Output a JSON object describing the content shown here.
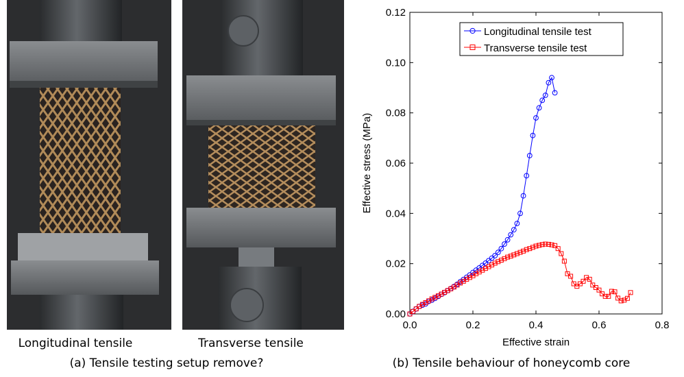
{
  "photos": {
    "left_label": "Longitudinal tensile",
    "right_label": "Transverse tensile",
    "caption": "(a) Tensile testing setup remove?"
  },
  "chart_caption": "(b) Tensile behaviour of honeycomb core",
  "colors": {
    "longitudinal": "#0000ff",
    "transverse": "#ff0000"
  },
  "chart_data": {
    "type": "line",
    "title": "",
    "xlabel": "Effective strain",
    "ylabel": "Effective stress (MPa)",
    "xlim": [
      0,
      0.8
    ],
    "ylim": [
      0,
      0.12
    ],
    "xticks": [
      0,
      0.2,
      0.4,
      0.6,
      0.8
    ],
    "xtick_labels": [
      "0.0",
      "0.2",
      "0.4",
      "0.6",
      "0.8"
    ],
    "yticks": [
      0,
      0.02,
      0.04,
      0.06,
      0.08,
      0.1,
      0.12
    ],
    "ytick_labels": [
      "0.00",
      "0.02",
      "0.04",
      "0.06",
      "0.08",
      "0.10",
      "0.12"
    ],
    "grid": false,
    "legend": "top-center",
    "series": [
      {
        "name": "Longitudinal tensile test",
        "color": "#0000ff",
        "marker": "circle",
        "x": [
          0.0,
          0.01,
          0.02,
          0.03,
          0.04,
          0.05,
          0.06,
          0.07,
          0.08,
          0.09,
          0.1,
          0.11,
          0.12,
          0.13,
          0.14,
          0.15,
          0.16,
          0.17,
          0.18,
          0.19,
          0.2,
          0.21,
          0.22,
          0.23,
          0.24,
          0.25,
          0.26,
          0.27,
          0.28,
          0.29,
          0.3,
          0.31,
          0.32,
          0.33,
          0.34,
          0.35,
          0.36,
          0.37,
          0.38,
          0.39,
          0.4,
          0.41,
          0.42,
          0.43,
          0.44,
          0.45,
          0.46
        ],
        "y": [
          0.0,
          0.001,
          0.002,
          0.003,
          0.0035,
          0.004,
          0.005,
          0.0055,
          0.0062,
          0.007,
          0.0078,
          0.0085,
          0.0093,
          0.0101,
          0.0109,
          0.0118,
          0.0128,
          0.0137,
          0.0146,
          0.0155,
          0.0165,
          0.0174,
          0.0183,
          0.0193,
          0.0202,
          0.0212,
          0.0222,
          0.0232,
          0.0245,
          0.026,
          0.0278,
          0.0295,
          0.0315,
          0.0335,
          0.036,
          0.04,
          0.047,
          0.055,
          0.063,
          0.071,
          0.078,
          0.082,
          0.085,
          0.087,
          0.092,
          0.094,
          0.088
        ]
      },
      {
        "name": "Transverse tensile test",
        "color": "#ff0000",
        "marker": "square",
        "x": [
          0.0,
          0.01,
          0.02,
          0.03,
          0.04,
          0.05,
          0.06,
          0.07,
          0.08,
          0.09,
          0.1,
          0.11,
          0.12,
          0.13,
          0.14,
          0.15,
          0.16,
          0.17,
          0.18,
          0.19,
          0.2,
          0.21,
          0.22,
          0.23,
          0.24,
          0.25,
          0.26,
          0.27,
          0.28,
          0.29,
          0.3,
          0.31,
          0.32,
          0.33,
          0.34,
          0.35,
          0.36,
          0.37,
          0.38,
          0.39,
          0.4,
          0.41,
          0.42,
          0.43,
          0.44,
          0.45,
          0.46,
          0.47,
          0.48,
          0.49,
          0.5,
          0.51,
          0.52,
          0.53,
          0.54,
          0.55,
          0.56,
          0.57,
          0.58,
          0.59,
          0.6,
          0.61,
          0.62,
          0.63,
          0.64,
          0.65,
          0.66,
          0.67,
          0.68,
          0.69,
          0.7
        ],
        "y": [
          0.0,
          0.001,
          0.002,
          0.003,
          0.0038,
          0.0045,
          0.0052,
          0.006,
          0.0066,
          0.0072,
          0.0079,
          0.0086,
          0.0093,
          0.01,
          0.0107,
          0.0115,
          0.0123,
          0.013,
          0.0138,
          0.0145,
          0.0152,
          0.016,
          0.0167,
          0.0174,
          0.0181,
          0.0188,
          0.0195,
          0.0202,
          0.0208,
          0.0214,
          0.022,
          0.0226,
          0.023,
          0.0235,
          0.024,
          0.0245,
          0.025,
          0.0256,
          0.026,
          0.0265,
          0.027,
          0.0273,
          0.0276,
          0.0278,
          0.0277,
          0.0275,
          0.0272,
          0.026,
          0.024,
          0.021,
          0.016,
          0.015,
          0.012,
          0.011,
          0.012,
          0.013,
          0.0145,
          0.0138,
          0.0115,
          0.0105,
          0.0095,
          0.008,
          0.007,
          0.007,
          0.009,
          0.0088,
          0.0063,
          0.0052,
          0.0055,
          0.0062,
          0.0085
        ]
      }
    ]
  }
}
